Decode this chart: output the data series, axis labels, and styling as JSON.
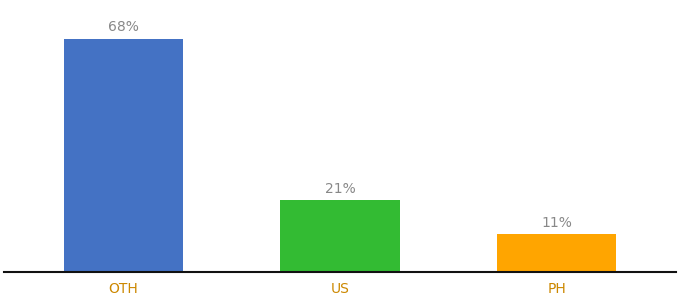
{
  "categories": [
    "OTH",
    "US",
    "PH"
  ],
  "values": [
    68,
    21,
    11
  ],
  "labels": [
    "68%",
    "21%",
    "11%"
  ],
  "bar_colors": [
    "#4472C4",
    "#33BB33",
    "#FFA500"
  ],
  "tick_label_color": "#CC8800",
  "background_color": "#ffffff",
  "label_text_color": "#888888",
  "label_fontsize": 10,
  "tick_fontsize": 10,
  "ylim": [
    0,
    78
  ],
  "bar_width": 0.55
}
